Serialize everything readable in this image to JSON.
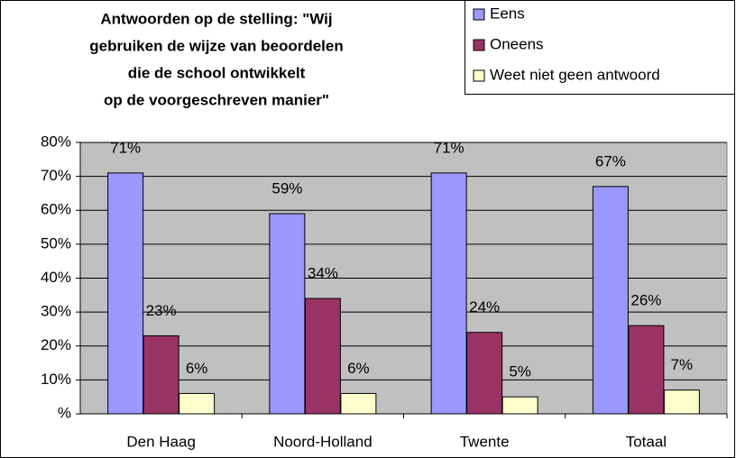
{
  "chart_data": {
    "type": "bar",
    "title": [
      "Antwoorden op de stelling: \"Wij",
      "gebruiken de wijze van beoordelen",
      "die de school ontwikkelt",
      "op de voorgeschreven manier\""
    ],
    "categories": [
      "Den Haag",
      "Noord-Holland",
      "Twente",
      "Totaal"
    ],
    "series": [
      {
        "name": "Eens",
        "color": "#9999ff",
        "values": [
          71,
          59,
          71,
          67
        ],
        "value_labels": [
          "71%",
          "59%",
          "71%",
          "67%"
        ]
      },
      {
        "name": "Oneens",
        "color": "#993366",
        "values": [
          23,
          34,
          24,
          26
        ],
        "value_labels": [
          "23%",
          "34%",
          "24%",
          "26%"
        ]
      },
      {
        "name": "Weet niet geen antwoord",
        "color": "#ffffcc",
        "values": [
          6,
          6,
          5,
          7
        ],
        "value_labels": [
          "6%",
          "6%",
          "5%",
          "7%"
        ]
      }
    ],
    "ylim": [
      0,
      80
    ],
    "yticks": [
      {
        "value": 0,
        "label": "%"
      },
      {
        "value": 10,
        "label": "10%"
      },
      {
        "value": 20,
        "label": "20%"
      },
      {
        "value": 30,
        "label": "30%"
      },
      {
        "value": 40,
        "label": "40%"
      },
      {
        "value": 50,
        "label": "50%"
      },
      {
        "value": 60,
        "label": "60%"
      },
      {
        "value": 70,
        "label": "70%"
      },
      {
        "value": 80,
        "label": "80%"
      }
    ],
    "legend": "top-right"
  }
}
